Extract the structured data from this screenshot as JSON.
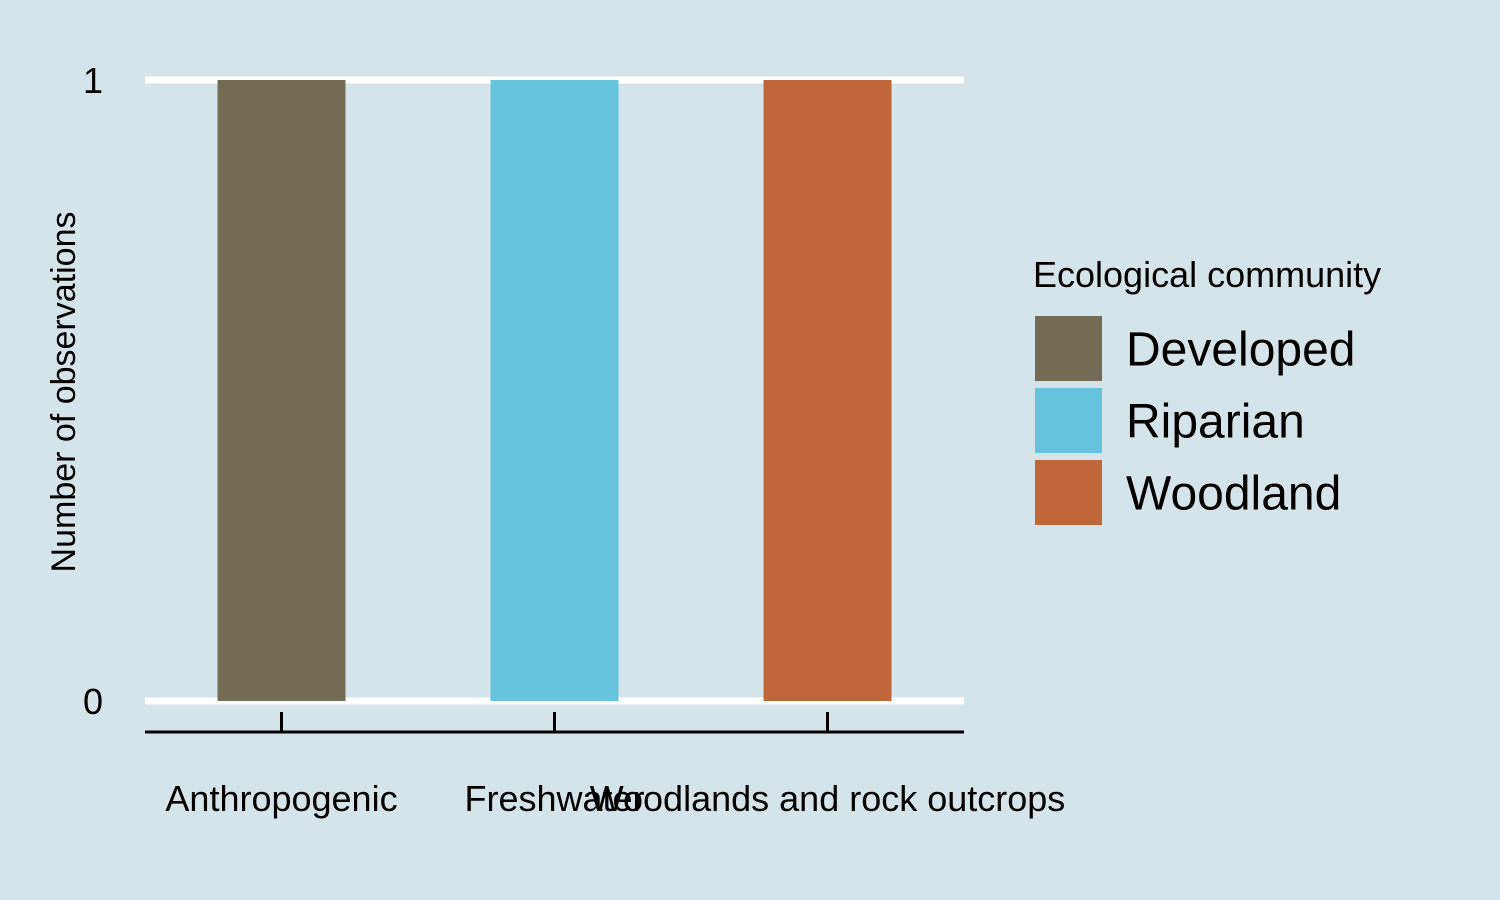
{
  "chart_data": {
    "type": "bar",
    "categories": [
      "Anthropogenic",
      "Freshwater",
      "Woodlands and rock outcrops"
    ],
    "series": [
      {
        "name": "Developed",
        "values": [
          1,
          0,
          0
        ]
      },
      {
        "name": "Riparian",
        "values": [
          0,
          1,
          0
        ]
      },
      {
        "name": "Woodland",
        "values": [
          0,
          0,
          1
        ]
      }
    ],
    "values": [
      1,
      1,
      1
    ],
    "bar_series": [
      "Developed",
      "Riparian",
      "Woodland"
    ],
    "ylabel": "Number of observations",
    "xlabel": "",
    "ylim": [
      0,
      1
    ],
    "yticks": [
      0,
      1
    ],
    "grid": "horizontal major lines only",
    "legend": {
      "title": "Ecological community",
      "placement": "right",
      "entries": [
        "Developed",
        "Riparian",
        "Woodland"
      ]
    },
    "colors": {
      "Developed": "#736b53",
      "Riparian": "#65c3de",
      "Woodland": "#bf673b",
      "background": "#d5e4eb",
      "gridline": "#ffffff",
      "axis": "#000000"
    }
  }
}
